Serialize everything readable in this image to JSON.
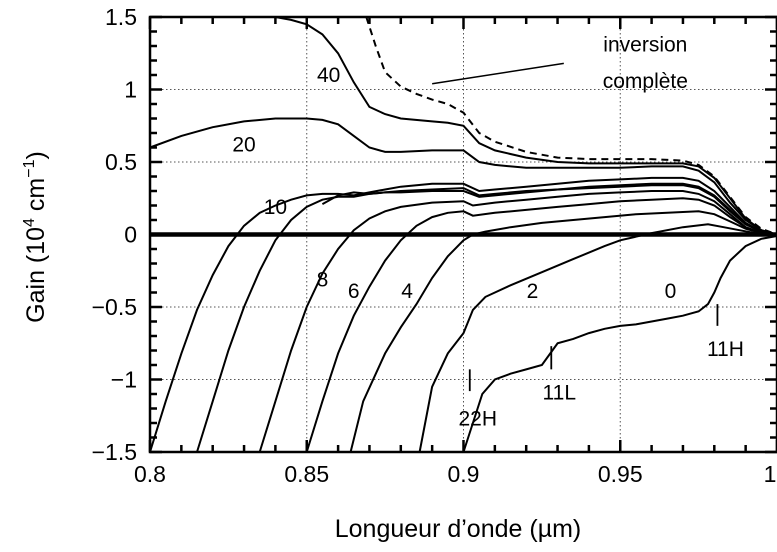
{
  "chart_data": {
    "type": "line",
    "xlabel": "Longueur d’onde (µm)",
    "ylabel_parts": {
      "pre": "Gain (10",
      "exp1": "4",
      "mid": " cm",
      "exp2": "−1",
      "post": ")"
    },
    "xlim": [
      0.8,
      1.0
    ],
    "ylim": [
      -1.5,
      1.5
    ],
    "grid": true,
    "x_ticks": [
      {
        "value": 0.8,
        "label": "0.8"
      },
      {
        "value": 0.85,
        "label": "0.85"
      },
      {
        "value": 0.9,
        "label": "0.9"
      },
      {
        "value": 0.95,
        "label": "0.95"
      },
      {
        "value": 1.0,
        "label": "1"
      }
    ],
    "y_ticks": [
      {
        "value": 1.5,
        "label": "1.5"
      },
      {
        "value": 1.0,
        "label": "1"
      },
      {
        "value": 0.5,
        "label": "0.5"
      },
      {
        "value": 0.0,
        "label": "0"
      },
      {
        "value": -0.5,
        "label": "−0.5"
      },
      {
        "value": -1.0,
        "label": "−1"
      },
      {
        "value": -1.5,
        "label": "−1.5"
      }
    ],
    "series": [
      {
        "name": "0",
        "style": "solid",
        "x": [
          0.9,
          0.903,
          0.906,
          0.91,
          0.915,
          0.92,
          0.925,
          0.93,
          0.935,
          0.94,
          0.945,
          0.95,
          0.955,
          0.96,
          0.965,
          0.97,
          0.975,
          0.978,
          0.98,
          0.982,
          0.985,
          0.99,
          0.995,
          1.0
        ],
        "y": [
          -1.5,
          -1.3,
          -1.1,
          -1.0,
          -0.96,
          -0.93,
          -0.9,
          -0.75,
          -0.72,
          -0.68,
          -0.65,
          -0.63,
          -0.62,
          -0.6,
          -0.58,
          -0.56,
          -0.53,
          -0.48,
          -0.4,
          -0.3,
          -0.18,
          -0.08,
          -0.03,
          -0.01
        ]
      },
      {
        "name": "2",
        "style": "solid",
        "x": [
          0.886,
          0.89,
          0.895,
          0.9,
          0.903,
          0.907,
          0.915,
          0.925,
          0.935,
          0.945,
          0.95,
          0.96,
          0.97,
          0.978,
          0.983,
          0.988,
          0.993,
          1.0
        ],
        "y": [
          -1.5,
          -1.05,
          -0.82,
          -0.68,
          -0.52,
          -0.43,
          -0.35,
          -0.26,
          -0.17,
          -0.08,
          -0.04,
          0.01,
          0.05,
          0.07,
          0.05,
          0.03,
          0.01,
          0.0
        ]
      },
      {
        "name": "4",
        "style": "solid",
        "x": [
          0.864,
          0.868,
          0.875,
          0.88,
          0.885,
          0.89,
          0.895,
          0.9,
          0.903,
          0.907,
          0.915,
          0.925,
          0.935,
          0.945,
          0.955,
          0.965,
          0.975,
          0.98,
          0.985,
          0.99,
          0.995,
          1.0
        ],
        "y": [
          -1.5,
          -1.15,
          -0.82,
          -0.64,
          -0.48,
          -0.3,
          -0.15,
          -0.04,
          0.0,
          0.02,
          0.05,
          0.08,
          0.1,
          0.12,
          0.14,
          0.15,
          0.16,
          0.14,
          0.09,
          0.04,
          0.01,
          0.0
        ]
      },
      {
        "name": "6",
        "style": "solid",
        "x": [
          0.85,
          0.855,
          0.86,
          0.865,
          0.87,
          0.875,
          0.88,
          0.885,
          0.89,
          0.895,
          0.9,
          0.903,
          0.91,
          0.92,
          0.93,
          0.94,
          0.95,
          0.96,
          0.97,
          0.975,
          0.98,
          0.985,
          0.99,
          0.995,
          1.0
        ],
        "y": [
          -1.5,
          -1.15,
          -0.82,
          -0.56,
          -0.36,
          -0.18,
          -0.04,
          0.06,
          0.12,
          0.15,
          0.16,
          0.13,
          0.15,
          0.17,
          0.19,
          0.21,
          0.23,
          0.24,
          0.25,
          0.24,
          0.2,
          0.12,
          0.05,
          0.01,
          0.0
        ]
      },
      {
        "name": "8",
        "style": "solid",
        "x": [
          0.835,
          0.84,
          0.845,
          0.85,
          0.855,
          0.86,
          0.865,
          0.87,
          0.875,
          0.88,
          0.89,
          0.9,
          0.903,
          0.91,
          0.92,
          0.93,
          0.94,
          0.95,
          0.96,
          0.97,
          0.975,
          0.98,
          0.985,
          0.99,
          0.995,
          1.0
        ],
        "y": [
          -1.5,
          -1.15,
          -0.8,
          -0.5,
          -0.27,
          -0.1,
          0.03,
          0.11,
          0.16,
          0.19,
          0.22,
          0.23,
          0.2,
          0.22,
          0.24,
          0.26,
          0.28,
          0.29,
          0.3,
          0.3,
          0.28,
          0.23,
          0.14,
          0.05,
          0.01,
          0.0
        ]
      },
      {
        "name": "10",
        "style": "solid",
        "x": [
          0.815,
          0.82,
          0.825,
          0.83,
          0.835,
          0.84,
          0.845,
          0.85,
          0.855,
          0.86,
          0.865,
          0.87,
          0.875,
          0.88,
          0.89,
          0.9,
          0.905,
          0.91,
          0.92,
          0.93,
          0.94,
          0.95,
          0.96,
          0.97,
          0.975,
          0.98,
          0.985,
          0.99,
          0.995,
          1.0
        ],
        "y": [
          -1.5,
          -1.15,
          -0.8,
          -0.5,
          -0.25,
          -0.04,
          0.1,
          0.19,
          0.24,
          0.26,
          0.26,
          0.28,
          0.29,
          0.29,
          0.3,
          0.3,
          0.26,
          0.27,
          0.29,
          0.31,
          0.33,
          0.34,
          0.35,
          0.35,
          0.33,
          0.27,
          0.17,
          0.07,
          0.02,
          0.0
        ]
      },
      {
        "name": "",
        "style": "solid",
        "x": [
          0.8,
          0.805,
          0.81,
          0.815,
          0.82,
          0.825,
          0.83,
          0.835,
          0.84,
          0.845,
          0.85,
          0.855,
          0.86,
          0.865,
          0.87,
          0.875,
          0.88,
          0.885,
          0.89,
          0.895,
          0.9,
          0.905,
          0.91,
          0.92,
          0.93,
          0.94,
          0.95,
          0.96,
          0.97,
          0.975,
          0.98,
          0.985,
          0.99,
          0.995,
          1.0
        ],
        "y": [
          -1.5,
          -1.15,
          -0.82,
          -0.52,
          -0.28,
          -0.08,
          0.06,
          0.15,
          0.2,
          0.24,
          0.27,
          0.28,
          0.28,
          0.27,
          0.29,
          0.31,
          0.33,
          0.34,
          0.35,
          0.35,
          0.35,
          0.3,
          0.31,
          0.33,
          0.35,
          0.37,
          0.38,
          0.39,
          0.39,
          0.37,
          0.3,
          0.19,
          0.08,
          0.02,
          0.0
        ]
      },
      {
        "name": "",
        "style": "solid",
        "x": [
          0.855,
          0.86,
          0.865,
          0.87,
          0.875,
          0.88,
          0.89,
          0.9,
          0.905,
          0.91,
          0.92,
          0.93,
          0.94,
          0.95,
          0.96,
          0.97,
          0.975,
          0.98,
          0.985,
          0.99,
          0.995,
          1.0
        ],
        "y": [
          0.21,
          0.27,
          0.29,
          0.28,
          0.29,
          0.3,
          0.31,
          0.32,
          0.27,
          0.28,
          0.3,
          0.31,
          0.32,
          0.33,
          0.34,
          0.34,
          0.32,
          0.26,
          0.16,
          0.07,
          0.02,
          0.0
        ]
      },
      {
        "name": "20",
        "style": "solid",
        "x": [
          0.8,
          0.81,
          0.82,
          0.83,
          0.84,
          0.85,
          0.855,
          0.86,
          0.865,
          0.87,
          0.875,
          0.88,
          0.89,
          0.895,
          0.9,
          0.905,
          0.91,
          0.92,
          0.93,
          0.94,
          0.95,
          0.96,
          0.97,
          0.975,
          0.98,
          0.985,
          0.99,
          0.995,
          1.0
        ],
        "y": [
          0.6,
          0.68,
          0.74,
          0.78,
          0.8,
          0.8,
          0.79,
          0.76,
          0.68,
          0.6,
          0.57,
          0.57,
          0.58,
          0.58,
          0.58,
          0.5,
          0.48,
          0.46,
          0.46,
          0.46,
          0.46,
          0.47,
          0.47,
          0.44,
          0.36,
          0.22,
          0.1,
          0.03,
          0.0
        ]
      },
      {
        "name": "40",
        "style": "solid",
        "x": [
          0.84,
          0.845,
          0.85,
          0.855,
          0.86,
          0.865,
          0.87,
          0.875,
          0.88,
          0.89,
          0.895,
          0.9,
          0.905,
          0.91,
          0.92,
          0.93,
          0.94,
          0.95,
          0.96,
          0.97,
          0.975,
          0.98,
          0.985,
          0.99,
          0.995,
          1.0
        ],
        "y": [
          1.5,
          1.48,
          1.45,
          1.38,
          1.25,
          1.05,
          0.88,
          0.83,
          0.8,
          0.78,
          0.77,
          0.75,
          0.63,
          0.58,
          0.53,
          0.5,
          0.49,
          0.49,
          0.49,
          0.49,
          0.47,
          0.39,
          0.25,
          0.11,
          0.03,
          0.0
        ]
      },
      {
        "name": "inversion complète",
        "style": "dashed",
        "x": [
          0.869,
          0.872,
          0.875,
          0.88,
          0.885,
          0.89,
          0.895,
          0.9,
          0.905,
          0.91,
          0.92,
          0.93,
          0.94,
          0.95,
          0.96,
          0.97,
          0.975,
          0.98,
          0.985,
          0.99,
          0.995,
          1.0
        ],
        "y": [
          1.5,
          1.3,
          1.12,
          1.02,
          0.97,
          0.93,
          0.9,
          0.84,
          0.7,
          0.64,
          0.57,
          0.53,
          0.52,
          0.52,
          0.52,
          0.51,
          0.48,
          0.4,
          0.26,
          0.12,
          0.04,
          0.0
        ]
      }
    ],
    "curve_labels": [
      {
        "text": "40",
        "x": 0.857,
        "y": 1.1
      },
      {
        "text": "20",
        "x": 0.83,
        "y": 0.62
      },
      {
        "text": "10",
        "x": 0.84,
        "y": 0.19
      },
      {
        "text": "8",
        "x": 0.855,
        "y": -0.31
      },
      {
        "text": "6",
        "x": 0.865,
        "y": -0.39
      },
      {
        "text": "4",
        "x": 0.882,
        "y": -0.39
      },
      {
        "text": "2",
        "x": 0.922,
        "y": -0.39
      },
      {
        "text": "0",
        "x": 0.966,
        "y": -0.39
      }
    ],
    "annotations": [
      {
        "text": "inversion",
        "x": 0.958,
        "y": 1.31
      },
      {
        "text": "complète",
        "x": 0.958,
        "y": 1.06
      }
    ],
    "annotation_pointer": {
      "x1": 0.89,
      "y1": 1.04,
      "x2": 0.932,
      "y2": 1.18
    },
    "transition_marks": [
      {
        "text": "22H",
        "x": 0.902,
        "y_top": -0.93,
        "y_bottom": -1.08,
        "label_y": -1.27
      },
      {
        "text": "11L",
        "x": 0.928,
        "y_top": -0.77,
        "y_bottom": -0.93,
        "label_y": -1.09
      },
      {
        "text": "11H",
        "x": 0.981,
        "y_top": -0.48,
        "y_bottom": -0.63,
        "label_y": -0.79
      }
    ]
  }
}
